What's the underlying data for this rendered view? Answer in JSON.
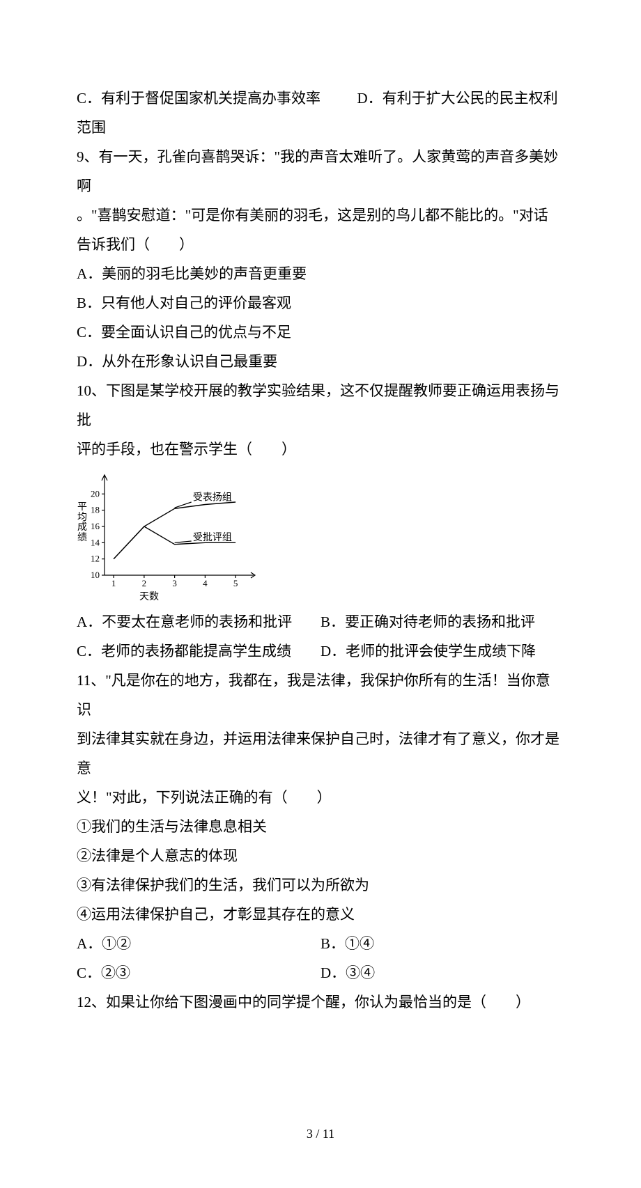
{
  "q8_tail": {
    "optC": "C．有利于督促国家机关提高办事效率",
    "optD": "D．有利于扩大公民的民主权利范围"
  },
  "q9": {
    "stem_l1": "9、有一天，孔雀向喜鹊哭诉：\"我的声音太难听了。人家黄莺的声音多美妙啊",
    "stem_l2": "。\"喜鹊安慰道：\"可是你有美丽的羽毛，这是别的鸟儿都不能比的。\"对话",
    "stem_l3": "告诉我们（　　）",
    "optA": "A．美丽的羽毛比美妙的声音更重要",
    "optB": "B．只有他人对自己的评价最客观",
    "optC": "C．要全面认识自己的优点与不足",
    "optD": "D．从外在形象认识自己最重要"
  },
  "q10": {
    "stem_l1": "10、下图是某学校开展的教学实验结果，这不仅提醒教师要正确运用表扬与批",
    "stem_l2": "评的手段，也在警示学生（　　）",
    "optA": "A．不要太在意老师的表扬和批评",
    "optB": "B．要正确对待老师的表扬和批评",
    "optC": "C．老师的表扬都能提高学生成绩",
    "optD": "D．老师的批评会使学生成绩下降"
  },
  "q11": {
    "stem_l1": "11、\"凡是你在的地方，我都在，我是法律，我保护你所有的生活！当你意识",
    "stem_l2": "到法律其实就在身边，并运用法律来保护自己时，法律才有了意义，你才是意",
    "stem_l3": "义！\"对此，下列说法正确的有（　　）",
    "s1": "①我们的生活与法律息息相关",
    "s2": "②法律是个人意志的体现",
    "s3": "③有法律保护我们的生活，我们可以为所欲为",
    "s4": "④运用法律保护自己，才彰显其存在的意义",
    "optA": "A．①②",
    "optB": "B．①④",
    "optC": "C．②③",
    "optD": "D．③④"
  },
  "q12": {
    "stem": "12、如果让你给下图漫画中的同学提个醒，你认为最恰当的是（　　）"
  },
  "chart": {
    "type": "line",
    "y_axis_label_vertical": "平均成绩",
    "x_axis_label": "天数",
    "x_ticks": [
      1,
      2,
      3,
      4,
      5
    ],
    "y_ticks": [
      10,
      12,
      14,
      16,
      18,
      20
    ],
    "ylim": [
      10,
      22
    ],
    "xlim": [
      0.7,
      5.5
    ],
    "series_praise_label": "受表扬组",
    "series_criticize_label": "受批评组",
    "series_praise": {
      "x": [
        1,
        2,
        3,
        4,
        5
      ],
      "y": [
        12,
        16,
        18.2,
        18.7,
        19
      ]
    },
    "series_criticize": {
      "x": [
        1,
        2,
        3,
        4,
        5
      ],
      "y": [
        12,
        16,
        13.8,
        14,
        14
      ]
    },
    "line_color": "#000000",
    "background_color": "#ffffff",
    "axis_fontsize": 13,
    "ann_fontsize": 14
  },
  "footer": {
    "text": "3 / 11"
  }
}
